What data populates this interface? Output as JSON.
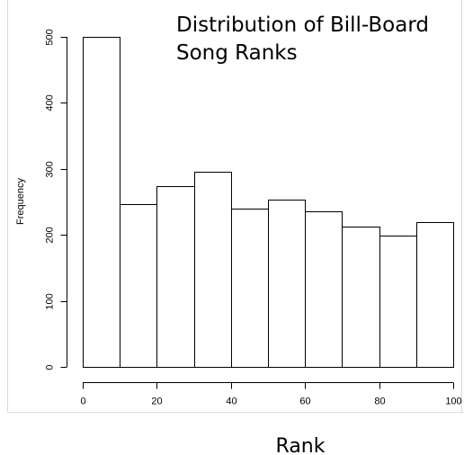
{
  "chart_data": {
    "type": "bar",
    "subtype": "histogram",
    "title_lines": [
      "Distribution of Bill-Board",
      "Song Ranks"
    ],
    "xlabel": "Rank",
    "ylabel": "Frequency",
    "bins": [
      {
        "from": 0,
        "to": 10,
        "value": 500
      },
      {
        "from": 10,
        "to": 20,
        "value": 246
      },
      {
        "from": 20,
        "to": 30,
        "value": 274
      },
      {
        "from": 30,
        "to": 40,
        "value": 295
      },
      {
        "from": 40,
        "to": 50,
        "value": 240
      },
      {
        "from": 50,
        "to": 60,
        "value": 254
      },
      {
        "from": 60,
        "to": 70,
        "value": 236
      },
      {
        "from": 70,
        "to": 80,
        "value": 212
      },
      {
        "from": 80,
        "to": 90,
        "value": 199
      },
      {
        "from": 90,
        "to": 100,
        "value": 220
      }
    ],
    "xlim": [
      0,
      100
    ],
    "ylim": [
      0,
      500
    ],
    "x_ticks": [
      0,
      20,
      40,
      60,
      80,
      100
    ],
    "y_ticks": [
      0,
      100,
      200,
      300,
      400,
      500
    ],
    "grid": false,
    "colors": {
      "bar_fill": "#ffffff",
      "bar_stroke": "#000000"
    }
  }
}
